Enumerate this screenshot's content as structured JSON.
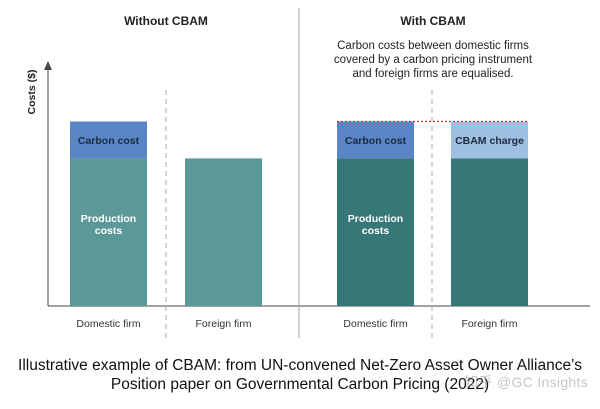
{
  "chart_data": {
    "type": "bar",
    "stacked": true,
    "ylabel": "Costs ($)",
    "panels": [
      {
        "title": "Without CBAM",
        "annotation": "",
        "categories": [
          "Domestic firm",
          "Foreign firm"
        ],
        "series": [
          {
            "name": "Production costs",
            "values": [
              60,
              60
            ]
          },
          {
            "name": "Carbon cost",
            "values": [
              15,
              0
            ]
          }
        ]
      },
      {
        "title": "With CBAM",
        "annotation": [
          "Carbon costs between domestic firms",
          "covered by a carbon pricing instrument",
          "and foreign firms are equalised."
        ],
        "categories": [
          "Domestic firm",
          "Foreign firm"
        ],
        "series": [
          {
            "name": "Production costs",
            "values": [
              60,
              60
            ]
          },
          {
            "name": "Carbon cost",
            "values": [
              15,
              0
            ]
          },
          {
            "name": "CBAM charge",
            "values": [
              0,
              15
            ]
          }
        ]
      }
    ],
    "labels": {
      "production": [
        "Production",
        "costs"
      ],
      "carbon": "Carbon cost",
      "cbam": "CBAM charge"
    },
    "ylim": [
      0,
      100
    ]
  },
  "colors": {
    "production_left": "#5b9999",
    "production_right": "#367878",
    "carbon": "#5b86c6",
    "cbam": "#9fbfe0",
    "equalise_line": "#e0283c",
    "axis": "#444444",
    "divider": "#aaaaaa"
  },
  "caption": {
    "line1": "Illustrative example of CBAM: from UN-convened Net-Zero Asset Owner Alliance’s",
    "line2": "Position paper on Governmental Carbon Pricing (2022)"
  },
  "watermark": "知乎 @GC Insights"
}
